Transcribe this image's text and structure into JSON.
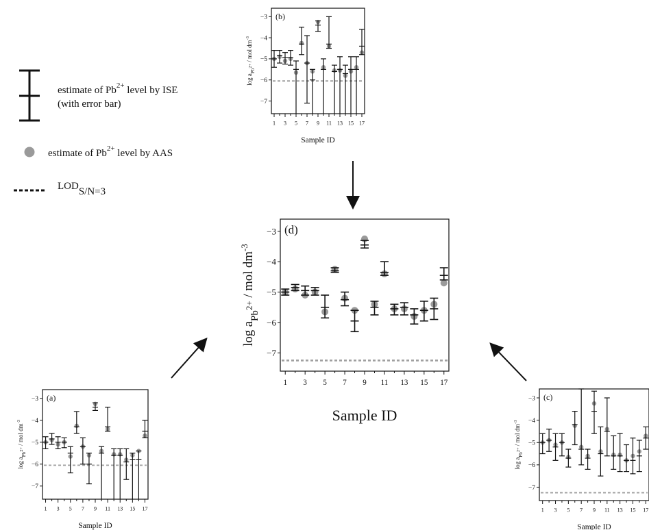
{
  "legend": {
    "ise_line1": "estimate of Pb",
    "ise_sup": "2+",
    "ise_line1_tail": " level by ISE",
    "ise_line2": "(with error bar)",
    "aas_line": "estimate of Pb",
    "aas_sup": "2+",
    "aas_tail": " level by AAS",
    "lod_main": "LOD",
    "lod_sub": "S/N=3"
  },
  "colors": {
    "axis": "#111111",
    "marker": "#9a9a9a",
    "lod": "#a0a0a0",
    "errorbar": "#111111"
  },
  "chart_data": [
    {
      "id": "a",
      "type": "scatter",
      "panel_label": "(a)",
      "xlabel": "Sample ID",
      "ylabel": "log a_Pb2+ / mol dm-3",
      "ylabel_parts": {
        "pre": "log a",
        "sub": "Pb",
        "subsup": "2+",
        "post": " / mol dm",
        "sup": "-3"
      },
      "xlim": [
        0.5,
        17.5
      ],
      "ylim": [
        -7.6,
        -2.6
      ],
      "xticks": [
        1,
        3,
        5,
        7,
        9,
        11,
        13,
        15,
        17
      ],
      "xtick_minor": [
        2,
        4,
        6,
        8,
        10,
        12,
        14,
        16
      ],
      "yticks": [
        -7,
        -6,
        -5,
        -4,
        -3
      ],
      "lod": -6.05,
      "series": [
        {
          "name": "estimate of Pb2+ level by ISE",
          "x": [
            1,
            2,
            3,
            4,
            5,
            6,
            7,
            8,
            9,
            10,
            11,
            12,
            13,
            14,
            15,
            16,
            17
          ],
          "y": [
            -5.0,
            -4.85,
            -5.0,
            -5.0,
            -5.5,
            -4.3,
            -5.2,
            -6.0,
            -3.4,
            -5.5,
            -4.3,
            -5.6,
            -5.6,
            -5.9,
            -5.8,
            -5.8,
            -4.5
          ],
          "y_low": [
            -5.3,
            -5.1,
            -5.3,
            -5.25,
            -6.4,
            -4.6,
            -6.0,
            -6.9,
            -3.55,
            -7.6,
            -4.5,
            -7.6,
            -7.6,
            -6.7,
            -7.6,
            -7.6,
            -4.8
          ],
          "y_high": [
            -4.75,
            -4.6,
            -4.75,
            -4.8,
            -5.2,
            -3.6,
            -4.8,
            -5.5,
            -3.2,
            -5.2,
            -3.4,
            -5.3,
            -5.3,
            -5.3,
            -5.5,
            -5.4,
            -4.0
          ]
        },
        {
          "name": "estimate of Pb2+ level by AAS",
          "x": [
            1,
            2,
            3,
            4,
            5,
            6,
            7,
            8,
            9,
            10,
            11,
            12,
            13,
            14,
            15,
            16,
            17
          ],
          "y": [
            -5.0,
            -4.9,
            -5.1,
            -5.0,
            -5.65,
            -4.25,
            -5.2,
            -5.6,
            -3.25,
            -5.4,
            -4.4,
            -5.55,
            -5.55,
            -5.8,
            -5.6,
            -5.4,
            -4.7
          ]
        }
      ]
    },
    {
      "id": "b",
      "type": "scatter",
      "panel_label": "(b)",
      "xlabel": "Sample ID",
      "ylabel": "log a_Pb2+ / mol dm-3",
      "ylabel_parts": {
        "pre": "log a",
        "sub": "Pb",
        "subsup": "2+",
        "post": " / mol dm",
        "sup": "-3"
      },
      "xlim": [
        0.5,
        17.5
      ],
      "ylim": [
        -7.6,
        -2.6
      ],
      "xticks": [
        1,
        3,
        5,
        7,
        9,
        11,
        13,
        15,
        17
      ],
      "xtick_minor": [
        2,
        4,
        6,
        8,
        10,
        12,
        14,
        16
      ],
      "yticks": [
        -7,
        -6,
        -5,
        -4,
        -3
      ],
      "lod": -6.05,
      "series": [
        {
          "name": "estimate of Pb2+ level by ISE",
          "x": [
            1,
            2,
            3,
            4,
            5,
            6,
            7,
            8,
            9,
            10,
            11,
            12,
            13,
            14,
            15,
            16,
            17
          ],
          "y": [
            -5.0,
            -4.85,
            -4.95,
            -4.95,
            -5.5,
            -4.3,
            -5.2,
            -6.0,
            -3.4,
            -5.5,
            -4.3,
            -5.6,
            -5.5,
            -5.7,
            -5.5,
            -5.5,
            -4.4
          ],
          "y_low": [
            -5.4,
            -5.2,
            -5.25,
            -5.3,
            -7.6,
            -4.8,
            -7.1,
            -7.6,
            -3.7,
            -7.6,
            -4.5,
            -7.6,
            -7.6,
            -7.6,
            -7.6,
            -7.6,
            -4.8
          ],
          "y_high": [
            -4.6,
            -4.6,
            -4.7,
            -4.6,
            -5.1,
            -3.5,
            -3.9,
            -5.5,
            -3.2,
            -5.0,
            -3.0,
            -5.3,
            -4.9,
            -5.3,
            -4.9,
            -4.9,
            -3.6
          ]
        },
        {
          "name": "estimate of Pb2+ level by AAS",
          "x": [
            1,
            2,
            3,
            4,
            5,
            6,
            7,
            8,
            9,
            10,
            11,
            12,
            13,
            14,
            15,
            16,
            17
          ],
          "y": [
            -5.0,
            -4.9,
            -5.1,
            -5.0,
            -5.65,
            -4.25,
            -5.2,
            -5.6,
            -3.25,
            -5.4,
            -4.4,
            -5.55,
            -5.55,
            -5.8,
            -5.6,
            -5.4,
            -4.7
          ]
        }
      ]
    },
    {
      "id": "c",
      "type": "scatter",
      "panel_label": "(c)",
      "xlabel": "Sample ID",
      "ylabel": "log a_Pb2+ / mol dm-3",
      "ylabel_parts": {
        "pre": "log a",
        "sub": "Pb",
        "subsup": "2+",
        "post": " / mol dm",
        "sup": "-3"
      },
      "xlim": [
        0.5,
        17.5
      ],
      "ylim": [
        -7.6,
        -2.6
      ],
      "xticks": [
        1,
        3,
        5,
        7,
        9,
        11,
        13,
        15,
        17
      ],
      "xtick_minor": [
        2,
        4,
        6,
        8,
        10,
        12,
        14,
        16
      ],
      "yticks": [
        -7,
        -6,
        -5,
        -4,
        -3
      ],
      "lod": -7.25,
      "series": [
        {
          "name": "estimate of Pb2+ level by ISE",
          "x": [
            1,
            2,
            3,
            4,
            5,
            6,
            7,
            8,
            9,
            10,
            11,
            12,
            13,
            14,
            15,
            16,
            17
          ],
          "y": [
            -5.0,
            -4.9,
            -5.2,
            -5.0,
            -5.7,
            -4.2,
            -5.3,
            -5.7,
            -3.6,
            -5.5,
            -4.5,
            -5.6,
            -5.6,
            -5.8,
            -5.8,
            -5.6,
            -4.8
          ],
          "y_low": [
            -5.5,
            -5.4,
            -5.8,
            -5.6,
            -6.1,
            -5.1,
            -6.0,
            -6.2,
            -4.6,
            -6.5,
            -5.6,
            -6.2,
            -6.3,
            -6.3,
            -6.4,
            -6.3,
            -5.3
          ],
          "y_high": [
            -4.6,
            -4.4,
            -4.6,
            -4.6,
            -5.3,
            -3.6,
            -2.6,
            -5.3,
            -2.7,
            -4.3,
            -3.0,
            -4.7,
            -4.6,
            -5.1,
            -4.8,
            -4.9,
            -4.3
          ]
        },
        {
          "name": "estimate of Pb2+ level by AAS",
          "x": [
            1,
            2,
            3,
            4,
            5,
            6,
            7,
            8,
            9,
            10,
            11,
            12,
            13,
            14,
            15,
            16,
            17
          ],
          "y": [
            -5.0,
            -4.9,
            -5.1,
            -5.0,
            -5.65,
            -4.25,
            -5.2,
            -5.6,
            -3.25,
            -5.4,
            -4.4,
            -5.55,
            -5.55,
            -5.8,
            -5.6,
            -5.4,
            -4.7
          ]
        }
      ]
    },
    {
      "id": "d",
      "type": "scatter",
      "panel_label": "(d)",
      "xlabel": "Sample ID",
      "ylabel": "log a_Pb2+ / mol dm-3",
      "ylabel_parts": {
        "pre": "log a",
        "sub": "Pb",
        "subsup": "2+",
        "post": " / mol dm",
        "sup": "-3"
      },
      "xlim": [
        0.5,
        17.5
      ],
      "ylim": [
        -7.6,
        -2.6
      ],
      "xticks": [
        1,
        3,
        5,
        7,
        9,
        11,
        13,
        15,
        17
      ],
      "xtick_minor": [
        2,
        4,
        6,
        8,
        10,
        12,
        14,
        16
      ],
      "yticks": [
        -7,
        -6,
        -5,
        -4,
        -3
      ],
      "lod": -7.25,
      "series": [
        {
          "name": "estimate of Pb2+ level by ISE",
          "x": [
            1,
            2,
            3,
            4,
            5,
            6,
            7,
            8,
            9,
            10,
            11,
            12,
            13,
            14,
            15,
            16,
            17
          ],
          "y": [
            -5.0,
            -4.85,
            -4.95,
            -4.95,
            -5.5,
            -4.3,
            -5.25,
            -5.95,
            -3.45,
            -5.5,
            -4.35,
            -5.55,
            -5.5,
            -5.75,
            -5.6,
            -5.55,
            -4.45
          ],
          "y_low": [
            -5.1,
            -4.95,
            -5.1,
            -5.1,
            -5.85,
            -4.35,
            -5.45,
            -6.3,
            -3.55,
            -5.75,
            -4.45,
            -5.75,
            -5.75,
            -6.05,
            -5.95,
            -5.9,
            -4.6
          ],
          "y_high": [
            -4.9,
            -4.75,
            -4.8,
            -4.85,
            -5.1,
            -4.2,
            -5.0,
            -5.6,
            -3.3,
            -5.3,
            -4.0,
            -5.4,
            -5.35,
            -5.55,
            -5.3,
            -5.2,
            -4.2
          ]
        },
        {
          "name": "estimate of Pb2+ level by AAS",
          "x": [
            1,
            2,
            3,
            4,
            5,
            6,
            7,
            8,
            9,
            10,
            11,
            12,
            13,
            14,
            15,
            16,
            17
          ],
          "y": [
            -5.0,
            -4.9,
            -5.1,
            -5.0,
            -5.65,
            -4.25,
            -5.2,
            -5.6,
            -3.25,
            -5.4,
            -4.4,
            -5.55,
            -5.55,
            -5.8,
            -5.6,
            -5.4,
            -4.7
          ]
        }
      ]
    }
  ]
}
